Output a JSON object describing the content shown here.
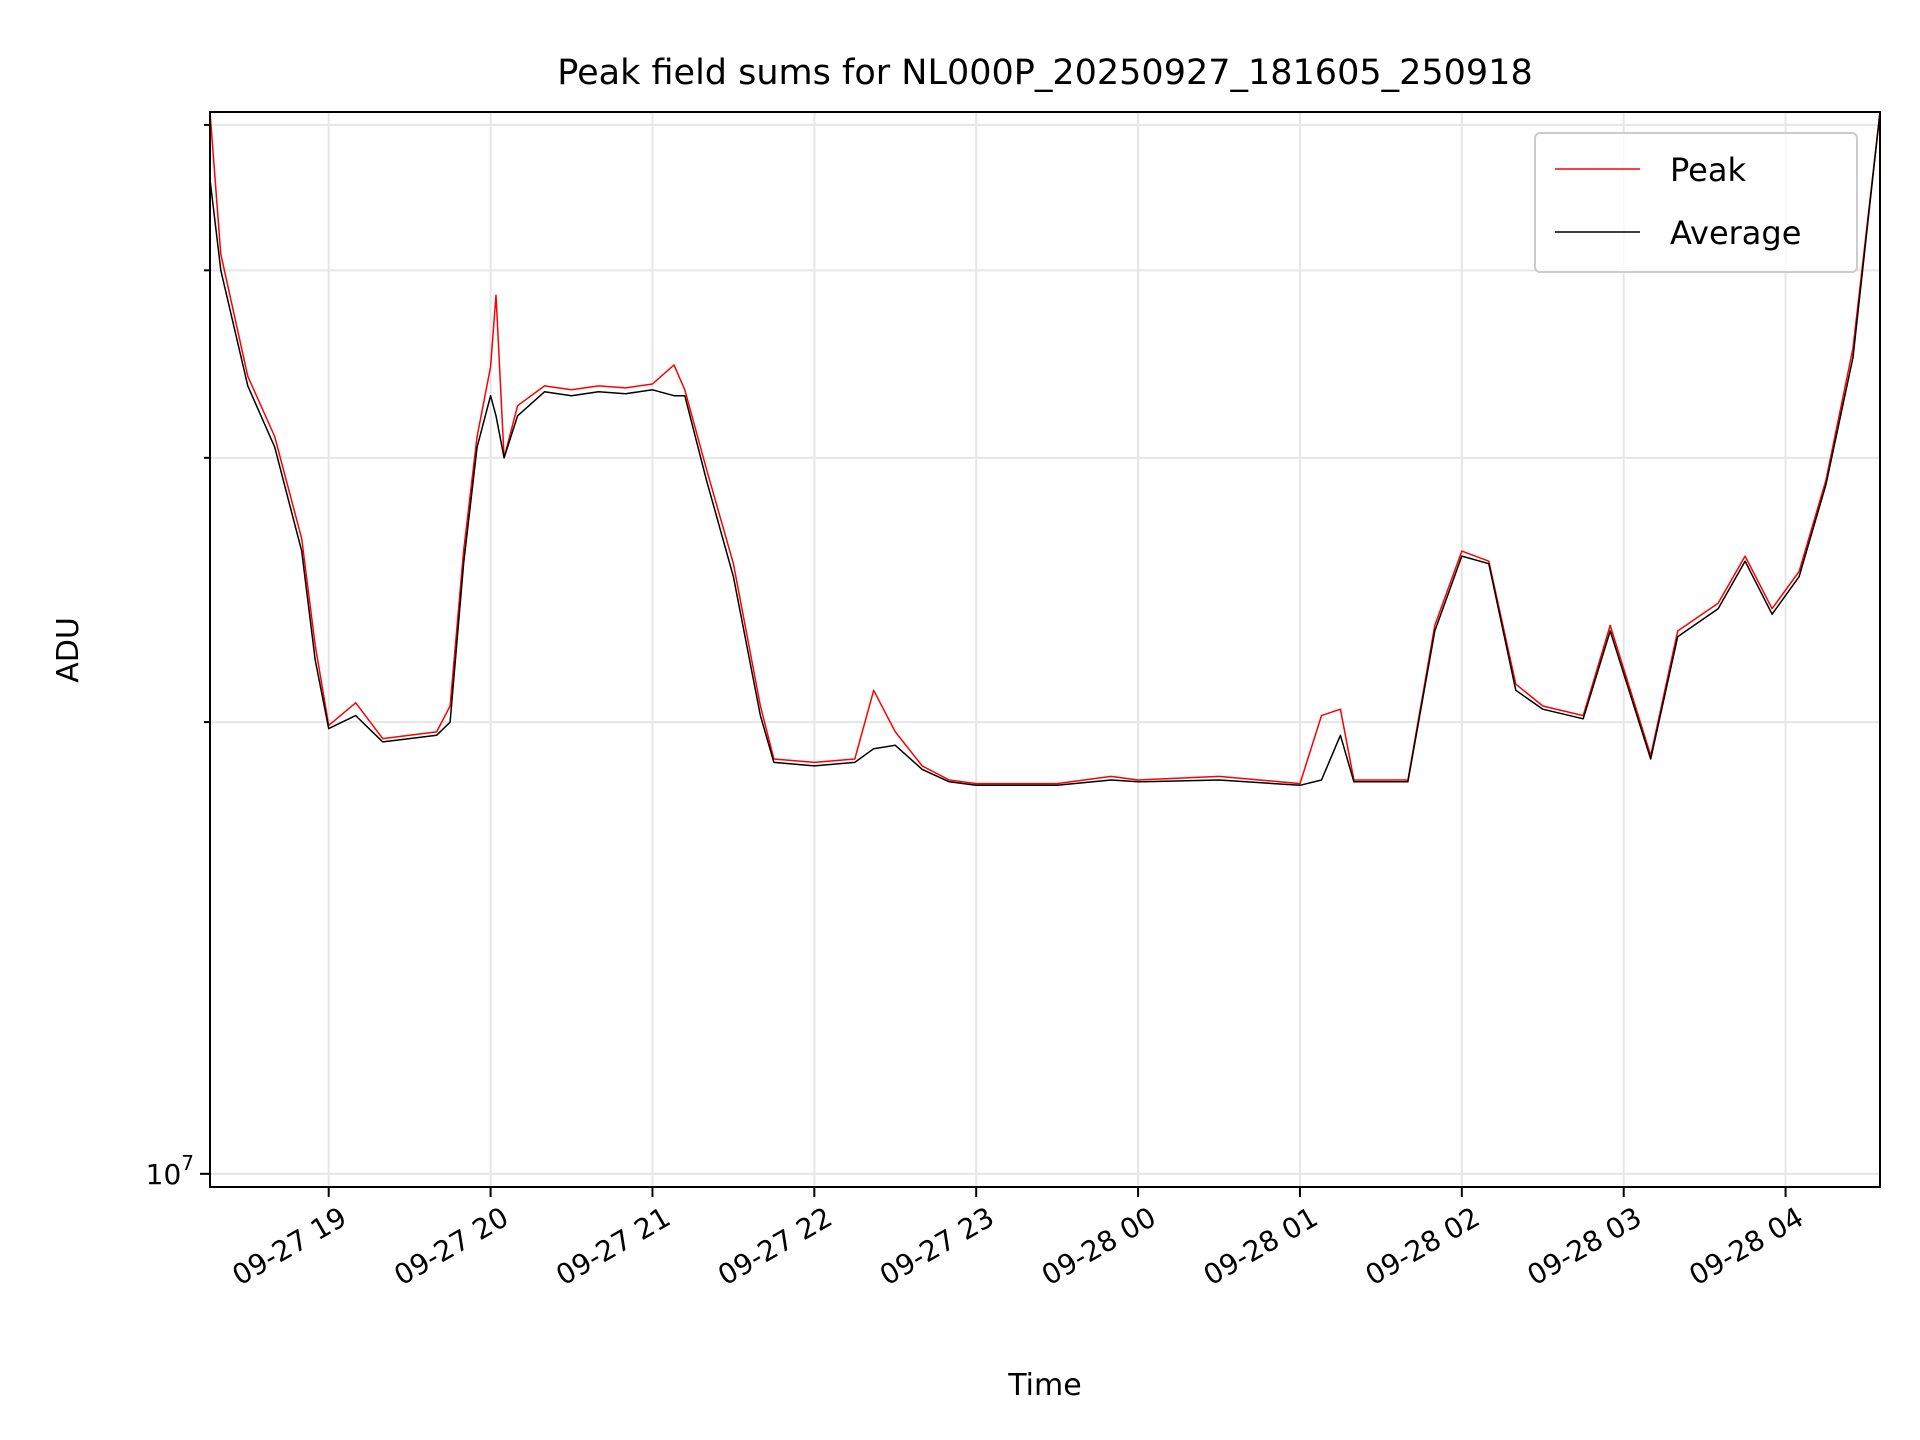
{
  "chart_data": {
    "type": "line",
    "title": "Peak field sums for NL000P_20250927_181605_250918",
    "xlabel": "Time",
    "ylabel": "ADU",
    "y_scale": "log",
    "grid": true,
    "legend_position": "top-right",
    "x_ticks": [
      "09-27 19",
      "09-27 20",
      "09-27 21",
      "09-27 22",
      "09-27 23",
      "09-28 00",
      "09-28 01",
      "09-28 02",
      "09-28 03",
      "09-28 04"
    ],
    "y_tick_label": {
      "mantissa": "10",
      "exponent": "7",
      "value": 10000000
    },
    "x_range": [
      "2025-09-27 18:16",
      "2025-09-28 04:35"
    ],
    "ylim": [
      9800000,
      51000000
    ],
    "colors": {
      "peak": "#ff0000",
      "average": "#000000",
      "grid": "#e6e6e6"
    },
    "series": [
      {
        "name": "Peak",
        "x": [
          "2025-09-27 18:16",
          "2025-09-27 18:20",
          "2025-09-27 18:30",
          "2025-09-27 18:40",
          "2025-09-27 18:50",
          "2025-09-27 18:55",
          "2025-09-27 19:00",
          "2025-09-27 19:10",
          "2025-09-27 19:20",
          "2025-09-27 19:30",
          "2025-09-27 19:40",
          "2025-09-27 19:45",
          "2025-09-27 19:50",
          "2025-09-27 19:55",
          "2025-09-27 20:00",
          "2025-09-27 20:02",
          "2025-09-27 20:05",
          "2025-09-27 20:10",
          "2025-09-27 20:20",
          "2025-09-27 20:30",
          "2025-09-27 20:40",
          "2025-09-27 20:50",
          "2025-09-27 21:00",
          "2025-09-27 21:08",
          "2025-09-27 21:12",
          "2025-09-27 21:20",
          "2025-09-27 21:30",
          "2025-09-27 21:40",
          "2025-09-27 21:45",
          "2025-09-27 22:00",
          "2025-09-27 22:15",
          "2025-09-27 22:22",
          "2025-09-27 22:30",
          "2025-09-27 22:40",
          "2025-09-27 22:50",
          "2025-09-27 23:00",
          "2025-09-27 23:30",
          "2025-09-27 23:50",
          "2025-09-28 00:00",
          "2025-09-28 00:30",
          "2025-09-28 01:00",
          "2025-09-28 01:08",
          "2025-09-28 01:15",
          "2025-09-28 01:20",
          "2025-09-28 01:40",
          "2025-09-28 01:50",
          "2025-09-28 02:00",
          "2025-09-28 02:10",
          "2025-09-28 02:20",
          "2025-09-28 02:30",
          "2025-09-28 02:45",
          "2025-09-28 02:55",
          "2025-09-28 03:10",
          "2025-09-28 03:20",
          "2025-09-28 03:35",
          "2025-09-28 03:45",
          "2025-09-28 03:55",
          "2025-09-28 04:05",
          "2025-09-28 04:15",
          "2025-09-28 04:25",
          "2025-09-28 04:35"
        ],
        "values": [
          51000000,
          41000000,
          34000000,
          31000000,
          26500000,
          22500000,
          19900000,
          20600000,
          19500000,
          19600000,
          19700000,
          20500000,
          26000000,
          31000000,
          34500000,
          38500000,
          30000000,
          32500000,
          33500000,
          33300000,
          33500000,
          33400000,
          33600000,
          34600000,
          33300000,
          29500000,
          25500000,
          20500000,
          18900000,
          18800000,
          18900000,
          21000000,
          19700000,
          18700000,
          18300000,
          18200000,
          18200000,
          18400000,
          18300000,
          18400000,
          18200000,
          20200000,
          20400000,
          18300000,
          18300000,
          23200000,
          26000000,
          25600000,
          21200000,
          20500000,
          20200000,
          23200000,
          19000000,
          23000000,
          24000000,
          25800000,
          23800000,
          25200000,
          29000000,
          35500000,
          51000000
        ]
      },
      {
        "name": "Average",
        "x": [
          "2025-09-27 18:16",
          "2025-09-27 18:20",
          "2025-09-27 18:30",
          "2025-09-27 18:40",
          "2025-09-27 18:50",
          "2025-09-27 18:55",
          "2025-09-27 19:00",
          "2025-09-27 19:10",
          "2025-09-27 19:20",
          "2025-09-27 19:30",
          "2025-09-27 19:40",
          "2025-09-27 19:45",
          "2025-09-27 19:50",
          "2025-09-27 19:55",
          "2025-09-27 20:00",
          "2025-09-27 20:02",
          "2025-09-27 20:05",
          "2025-09-27 20:10",
          "2025-09-27 20:20",
          "2025-09-27 20:30",
          "2025-09-27 20:40",
          "2025-09-27 20:50",
          "2025-09-27 21:00",
          "2025-09-27 21:08",
          "2025-09-27 21:12",
          "2025-09-27 21:20",
          "2025-09-27 21:30",
          "2025-09-27 21:40",
          "2025-09-27 21:45",
          "2025-09-27 22:00",
          "2025-09-27 22:15",
          "2025-09-27 22:22",
          "2025-09-27 22:30",
          "2025-09-27 22:40",
          "2025-09-27 22:50",
          "2025-09-27 23:00",
          "2025-09-27 23:30",
          "2025-09-27 23:50",
          "2025-09-28 00:00",
          "2025-09-28 00:30",
          "2025-09-28 01:00",
          "2025-09-28 01:08",
          "2025-09-28 01:15",
          "2025-09-28 01:20",
          "2025-09-28 01:40",
          "2025-09-28 01:50",
          "2025-09-28 02:00",
          "2025-09-28 02:10",
          "2025-09-28 02:20",
          "2025-09-28 02:30",
          "2025-09-28 02:45",
          "2025-09-28 02:55",
          "2025-09-28 03:10",
          "2025-09-28 03:20",
          "2025-09-28 03:35",
          "2025-09-28 03:45",
          "2025-09-28 03:55",
          "2025-09-28 04:05",
          "2025-09-28 04:15",
          "2025-09-28 04:25",
          "2025-09-28 04:35"
        ],
        "values": [
          46000000,
          40000000,
          33500000,
          30500000,
          26000000,
          22000000,
          19800000,
          20200000,
          19400000,
          19500000,
          19600000,
          20000000,
          25500000,
          30500000,
          33000000,
          32000000,
          30000000,
          32000000,
          33200000,
          33000000,
          33200000,
          33100000,
          33300000,
          33000000,
          33000000,
          29000000,
          25000000,
          20200000,
          18800000,
          18700000,
          18800000,
          19200000,
          19300000,
          18600000,
          18250000,
          18150000,
          18150000,
          18300000,
          18250000,
          18300000,
          18150000,
          18300000,
          19600000,
          18250000,
          18250000,
          23000000,
          25800000,
          25500000,
          21000000,
          20400000,
          20100000,
          23000000,
          18900000,
          22800000,
          23800000,
          25600000,
          23600000,
          25000000,
          28800000,
          35000000,
          51000000
        ]
      }
    ]
  }
}
